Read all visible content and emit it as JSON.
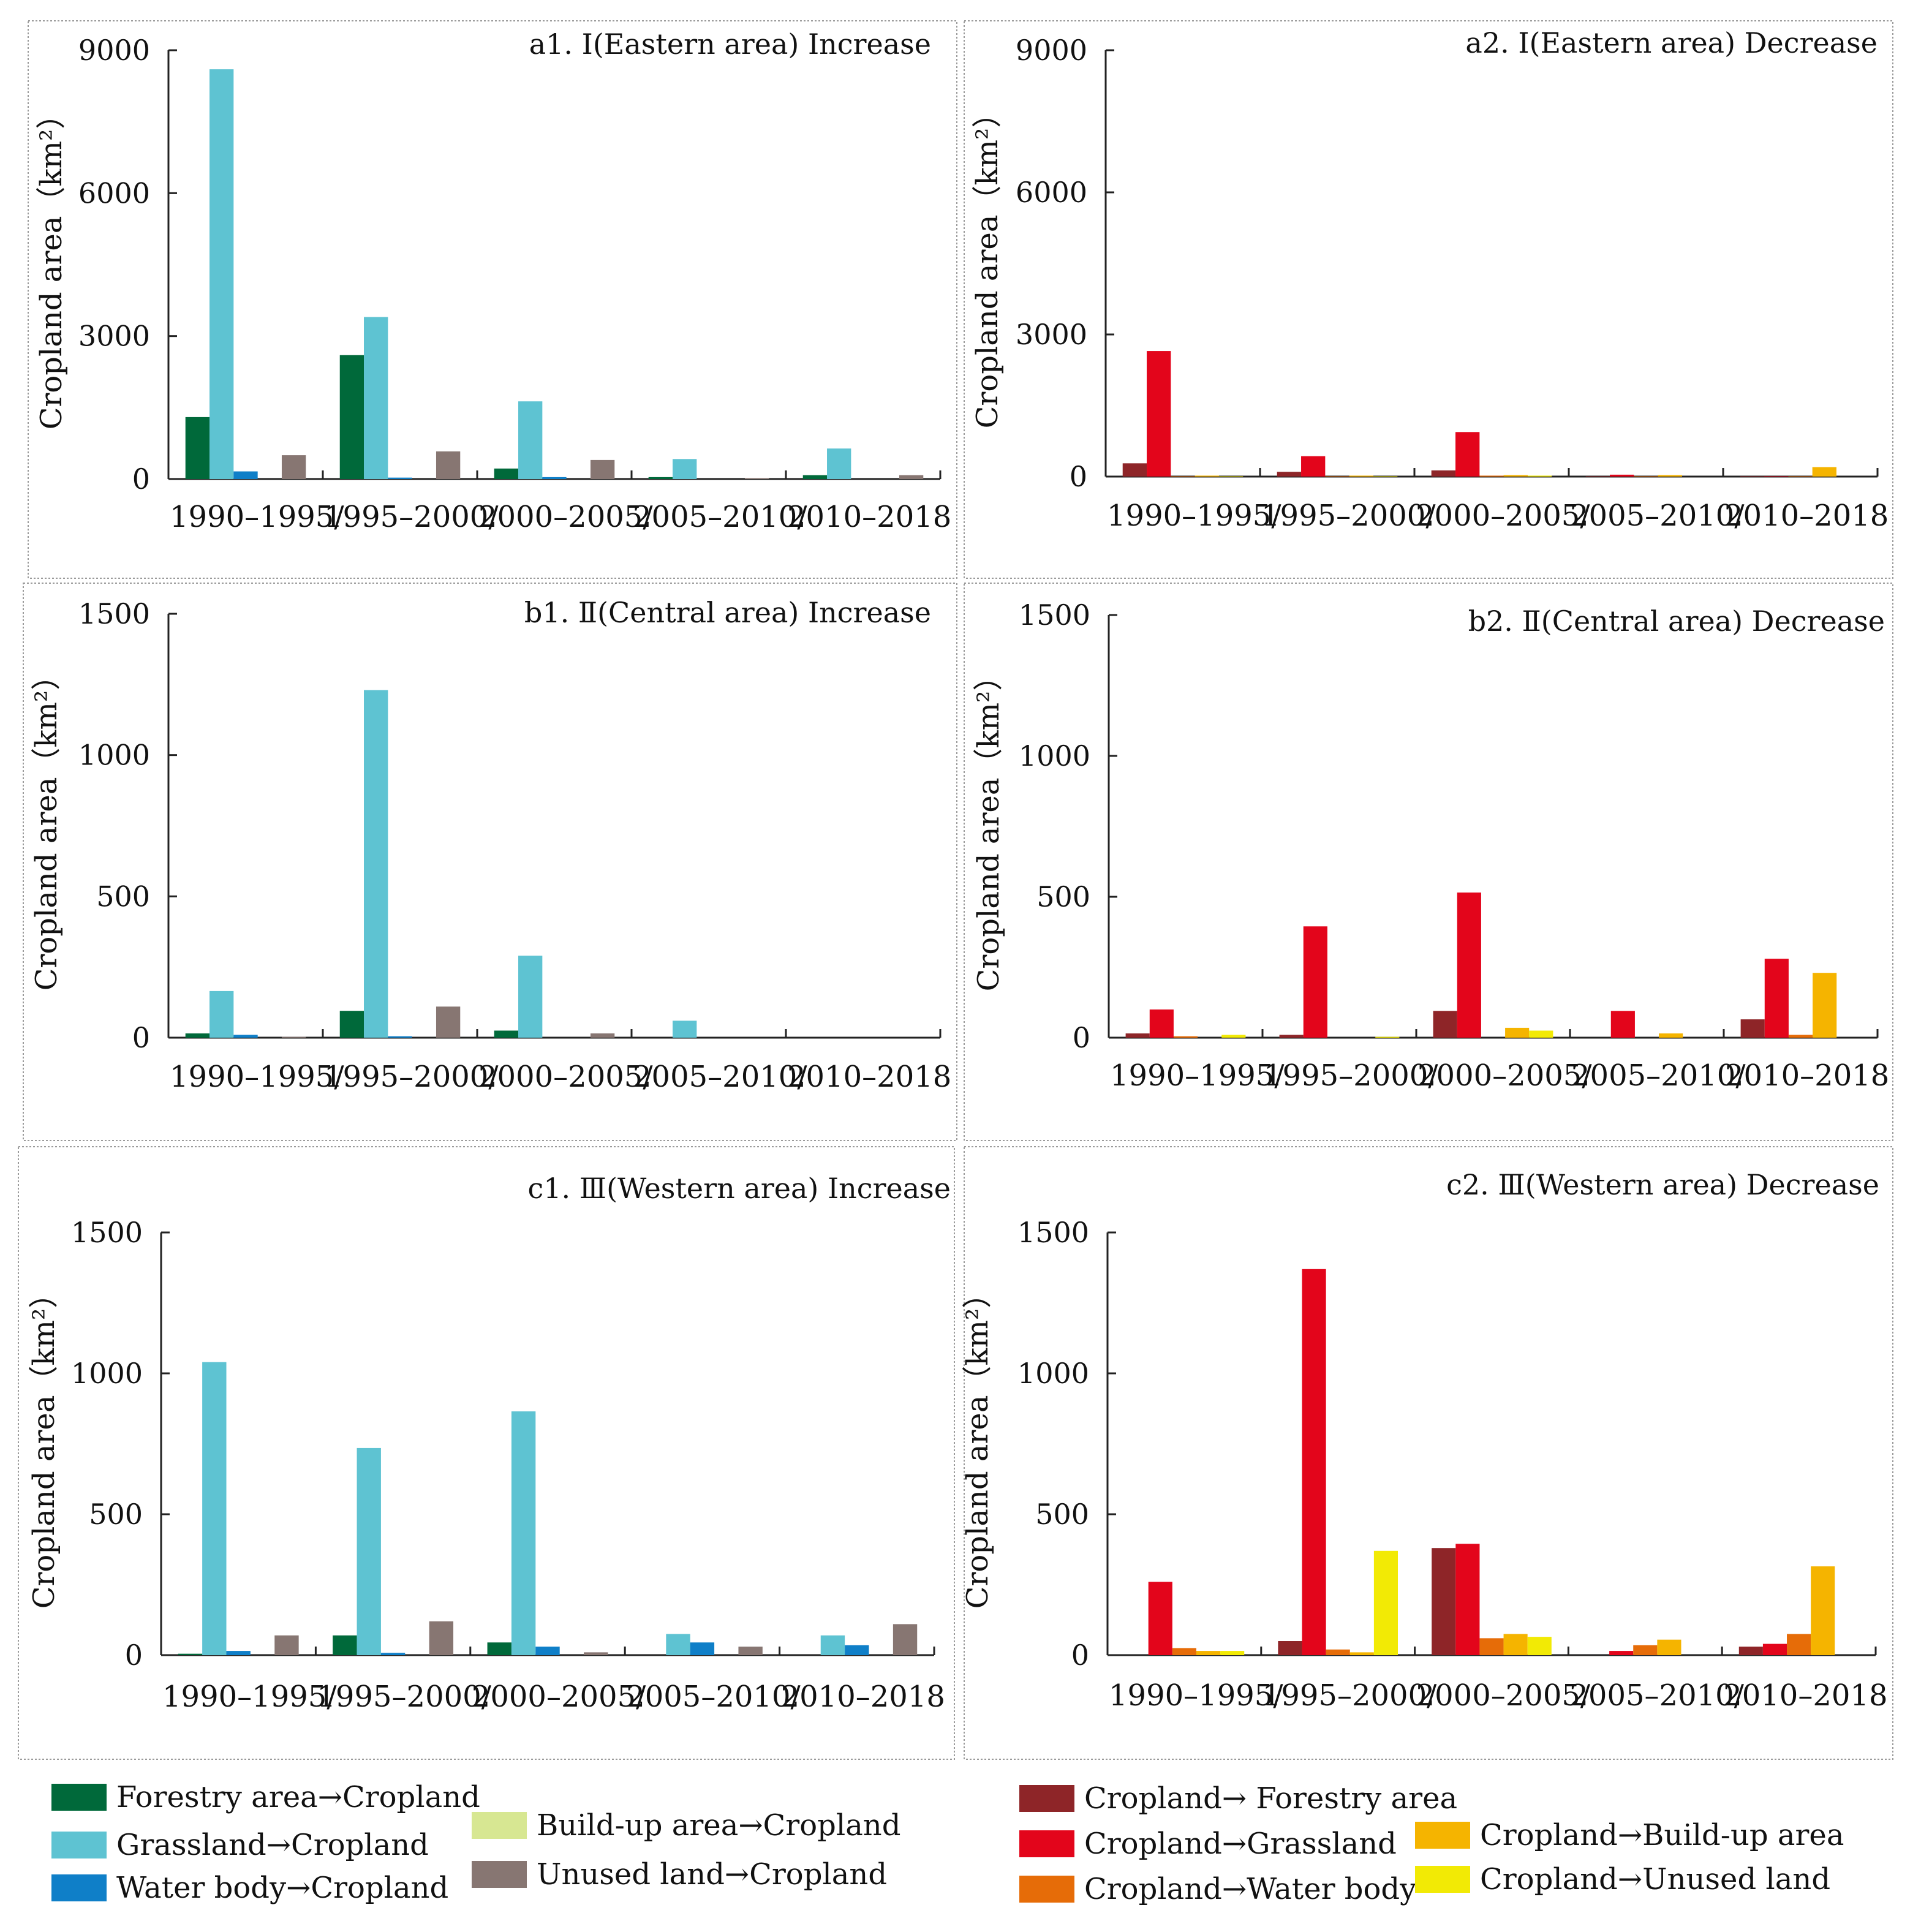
{
  "chart_data": [
    {
      "type": "bar",
      "title": "a1. Ⅰ(Eastern area)  Increase",
      "ylabel": "Cropland  area（km²）",
      "xlabel": "",
      "ylim": [
        0,
        9000
      ],
      "yticks": [
        0,
        3000,
        6000,
        9000
      ],
      "categories": [
        "1990–1995/",
        "1995–2000/",
        "2000–2005/",
        "2005–2010/",
        "2010–2018"
      ],
      "series": [
        {
          "name": "Forestry area→Cropland",
          "values": [
            1300,
            2600,
            220,
            40,
            80
          ]
        },
        {
          "name": "Grassland→Cropland",
          "values": [
            8600,
            3400,
            1630,
            420,
            640
          ]
        },
        {
          "name": "Water body→Cropland",
          "values": [
            160,
            30,
            40,
            0,
            0
          ]
        },
        {
          "name": "Build-up area→Cropland",
          "values": [
            0,
            0,
            0,
            0,
            0
          ]
        },
        {
          "name": "Unused land→Cropland",
          "values": [
            500,
            580,
            400,
            20,
            80
          ]
        }
      ]
    },
    {
      "type": "bar",
      "title": "a2. Ⅰ(Eastern area)  Decrease",
      "ylabel": "Cropland  area（km²）",
      "xlabel": "",
      "ylim": [
        0,
        9000
      ],
      "yticks": [
        0,
        3000,
        6000,
        9000
      ],
      "categories": [
        "1990–1995/",
        "1995–2000/",
        "2000–2005/",
        "2005–2010/",
        "2010–2018"
      ],
      "series": [
        {
          "name": "Cropland→ Forestry area",
          "values": [
            280,
            100,
            130,
            10,
            10
          ]
        },
        {
          "name": "Cropland→Grassland",
          "values": [
            2650,
            430,
            940,
            40,
            10
          ]
        },
        {
          "name": "Cropland→Water body",
          "values": [
            10,
            10,
            20,
            10,
            10
          ]
        },
        {
          "name": "Cropland→Build-up area",
          "values": [
            20,
            20,
            30,
            30,
            200
          ]
        },
        {
          "name": "Cropland→Unused land",
          "values": [
            10,
            10,
            20,
            0,
            0
          ]
        }
      ]
    },
    {
      "type": "bar",
      "title": "b1. Ⅱ(Central area)  Increase",
      "ylabel": "Cropland  area（km²）",
      "xlabel": "",
      "ylim": [
        0,
        1500
      ],
      "yticks": [
        0,
        500,
        1000,
        1500
      ],
      "categories": [
        "1990–1995/",
        "1995–2000/",
        "2000–2005/",
        "2005–2010/",
        "2010–2018"
      ],
      "series": [
        {
          "name": "Forestry area→Cropland",
          "values": [
            15,
            95,
            25,
            0,
            0
          ]
        },
        {
          "name": "Grassland→Cropland",
          "values": [
            165,
            1230,
            290,
            60,
            0
          ]
        },
        {
          "name": "Water body→Cropland",
          "values": [
            10,
            5,
            0,
            0,
            0
          ]
        },
        {
          "name": "Build-up area→Cropland",
          "values": [
            0,
            0,
            0,
            0,
            0
          ]
        },
        {
          "name": "Unused land→Cropland",
          "values": [
            3,
            110,
            15,
            0,
            0
          ]
        }
      ]
    },
    {
      "type": "bar",
      "title": "b2. Ⅱ(Central area)  Decrease",
      "ylabel": "Cropland  area（km²）",
      "xlabel": "",
      "ylim": [
        0,
        1500
      ],
      "yticks": [
        0,
        500,
        1000,
        1500
      ],
      "categories": [
        "1990–1995/",
        "1995–2000/",
        "2000–2005/",
        "2005–2010/",
        "2010–2018"
      ],
      "series": [
        {
          "name": "Cropland→ Forestry area",
          "values": [
            15,
            10,
            95,
            0,
            65
          ]
        },
        {
          "name": "Cropland→Grassland",
          "values": [
            100,
            395,
            515,
            95,
            280
          ]
        },
        {
          "name": "Cropland→Water body",
          "values": [
            5,
            0,
            0,
            0,
            10
          ]
        },
        {
          "name": "Cropland→Build-up area",
          "values": [
            0,
            0,
            35,
            15,
            230
          ]
        },
        {
          "name": "Cropland→Unused land",
          "values": [
            10,
            3,
            25,
            0,
            0
          ]
        }
      ]
    },
    {
      "type": "bar",
      "title": "c1. Ⅲ(Western area)  Increase",
      "ylabel": "Cropland  area（km²）",
      "xlabel": "",
      "ylim": [
        0,
        1500
      ],
      "yticks": [
        0,
        500,
        1000,
        1500
      ],
      "categories": [
        "1990–1995/",
        "1995–2000/",
        "2000–2005/",
        "2005–2010/",
        "2010–2018"
      ],
      "series": [
        {
          "name": "Forestry area→Cropland",
          "values": [
            5,
            70,
            45,
            0,
            0
          ]
        },
        {
          "name": "Grassland→Cropland",
          "values": [
            1040,
            735,
            865,
            75,
            70
          ]
        },
        {
          "name": "Water body→Cropland",
          "values": [
            15,
            8,
            30,
            45,
            35
          ]
        },
        {
          "name": "Build-up area→Cropland",
          "values": [
            0,
            0,
            0,
            0,
            0
          ]
        },
        {
          "name": "Unused land→Cropland",
          "values": [
            70,
            120,
            10,
            30,
            110
          ]
        }
      ]
    },
    {
      "type": "bar",
      "title": "c2. Ⅲ(Western area)  Decrease",
      "ylabel": "Cropland  area（km²）",
      "xlabel": "",
      "ylim": [
        0,
        1500
      ],
      "yticks": [
        0,
        500,
        1000,
        1500
      ],
      "categories": [
        "1990–1995/",
        "1995–2000/",
        "2000–2005/",
        "2005–2010/",
        "2010–2018"
      ],
      "series": [
        {
          "name": "Cropland→ Forestry area",
          "values": [
            0,
            50,
            380,
            0,
            30
          ]
        },
        {
          "name": "Cropland→Grassland",
          "values": [
            260,
            1370,
            395,
            15,
            40
          ]
        },
        {
          "name": "Cropland→Water body",
          "values": [
            25,
            20,
            60,
            35,
            75
          ]
        },
        {
          "name": "Cropland→Build-up area",
          "values": [
            15,
            10,
            75,
            55,
            315
          ]
        },
        {
          "name": "Cropland→Unused land",
          "values": [
            15,
            370,
            65,
            0,
            0
          ]
        }
      ]
    }
  ],
  "legend_increase": [
    {
      "label": "Forestry area→Cropland",
      "color": "#00693a"
    },
    {
      "label": "Grassland→Cropland",
      "color": "#5ec3d2"
    },
    {
      "label": "Water body→Cropland",
      "color": "#0f7fc8"
    },
    {
      "label": "Build-up area→Cropland",
      "color": "#d7e792"
    },
    {
      "label": "Unused land→Cropland",
      "color": "#877672"
    }
  ],
  "legend_decrease": [
    {
      "label": "Cropland→ Forestry area",
      "color": "#8e2528"
    },
    {
      "label": "Cropland→Grassland",
      "color": "#e3051b"
    },
    {
      "label": "Cropland→Water body",
      "color": "#e66c08"
    },
    {
      "label": "Cropland→Build-up area",
      "color": "#f5b400"
    },
    {
      "label": "Cropland→Unused land",
      "color": "#f2ea05"
    }
  ]
}
